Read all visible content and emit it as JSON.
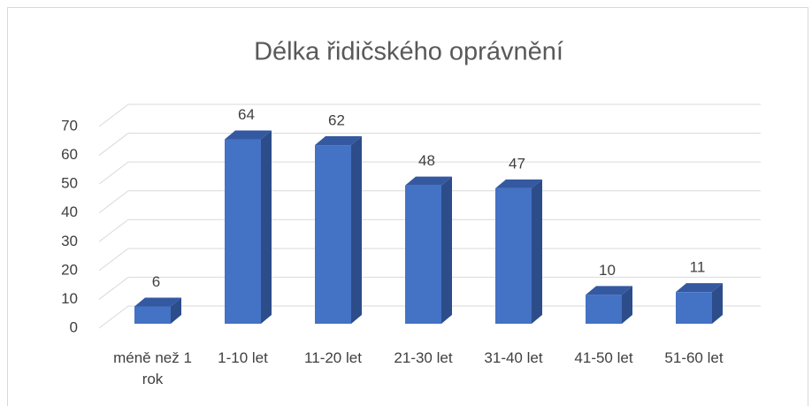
{
  "chart_data": {
    "type": "bar",
    "title": "Délka řidičského oprávnění",
    "categories": [
      "méně než 1 rok",
      "1-10 let",
      "11-20 let",
      "21-30 let",
      "31-40 let",
      "41-50 let",
      "51-60 let"
    ],
    "values": [
      6,
      64,
      62,
      48,
      47,
      10,
      11
    ],
    "color": "#4472c4",
    "ylim": [
      0,
      70
    ],
    "yticks": [
      0,
      10,
      20,
      30,
      40,
      50,
      60,
      70
    ],
    "grid": true
  }
}
